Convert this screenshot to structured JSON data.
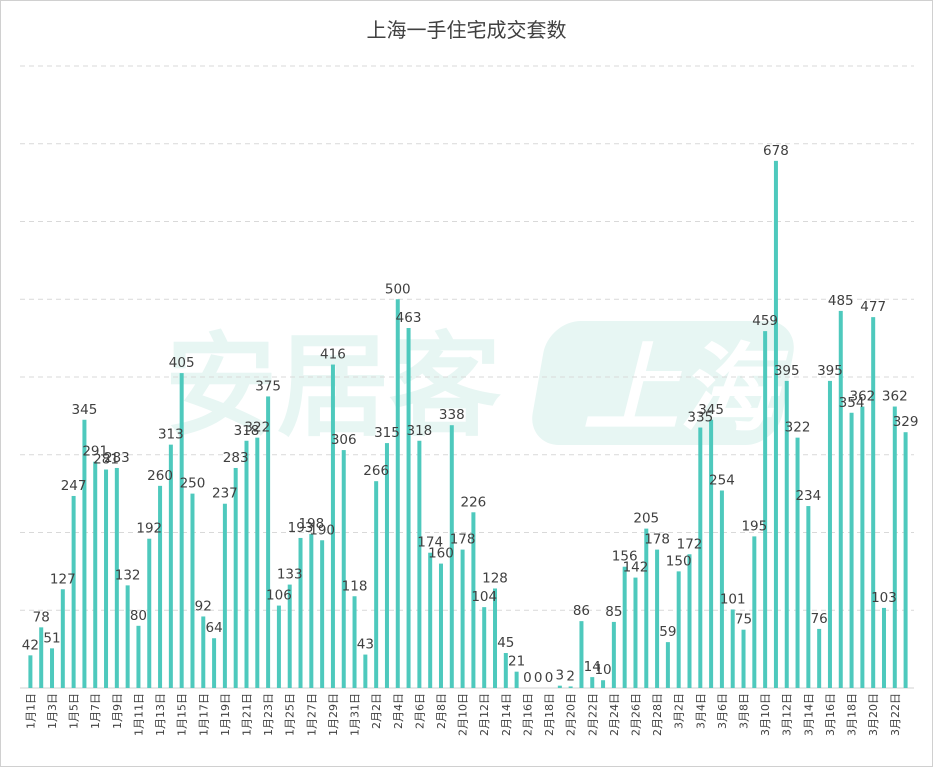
{
  "chart_data": {
    "type": "bar",
    "title": "上海一手住宅成交套数",
    "xlabel": "",
    "ylabel": "",
    "ylim": [
      0,
      800
    ],
    "grid": true,
    "bar_color": "#4ec9bd",
    "categories": [
      "1月1日",
      "1月2日",
      "1月3日",
      "1月4日",
      "1月5日",
      "1月6日",
      "1月7日",
      "1月8日",
      "1月9日",
      "1月10日",
      "1月11日",
      "1月12日",
      "1月13日",
      "1月14日",
      "1月15日",
      "1月16日",
      "1月17日",
      "1月18日",
      "1月19日",
      "1月20日",
      "1月21日",
      "1月22日",
      "1月23日",
      "1月24日",
      "1月25日",
      "1月26日",
      "1月27日",
      "1月28日",
      "1月29日",
      "1月30日",
      "1月31日",
      "2月1日",
      "2月2日",
      "2月3日",
      "2月4日",
      "2月5日",
      "2月6日",
      "2月7日",
      "2月8日",
      "2月9日",
      "2月10日",
      "2月11日",
      "2月12日",
      "2月13日",
      "2月14日",
      "2月15日",
      "2月16日",
      "2月17日",
      "2月18日",
      "2月19日",
      "2月20日",
      "2月21日",
      "2月22日",
      "2月23日",
      "2月24日",
      "2月25日",
      "2月26日",
      "2月27日",
      "2月28日",
      "3月1日",
      "3月2日",
      "3月3日",
      "3月4日",
      "3月5日",
      "3月6日",
      "3月7日",
      "3月8日",
      "3月9日",
      "3月10日",
      "3月11日",
      "3月12日",
      "3月13日",
      "3月14日",
      "3月15日",
      "3月16日",
      "3月17日",
      "3月18日",
      "3月19日",
      "3月20日",
      "3月21日",
      "3月22日",
      "3月23日"
    ],
    "shown_tick_labels": [
      "1月1日",
      "1月3日",
      "1月5日",
      "1月7日",
      "1月9日",
      "1月11日",
      "1月13日",
      "1月15日",
      "1月17日",
      "1月19日",
      "1月21日",
      "1月23日",
      "1月25日",
      "1月27日",
      "1月29日",
      "1月31日",
      "2月2日",
      "2月4日",
      "2月6日",
      "2月8日",
      "2月10日",
      "2月12日",
      "2月14日",
      "2月16日",
      "2月18日",
      "2月20日",
      "2月22日",
      "2月24日",
      "2月26日",
      "2月28日",
      "3月2日",
      "3月4日",
      "3月6日",
      "3月8日",
      "3月10日",
      "3月12日",
      "3月14日",
      "3月16日",
      "3月18日",
      "3月20日",
      "3月22日"
    ],
    "values": [
      42,
      78,
      51,
      127,
      247,
      345,
      291,
      281,
      283,
      132,
      80,
      192,
      260,
      313,
      405,
      250,
      92,
      64,
      237,
      283,
      318,
      322,
      375,
      106,
      133,
      193,
      198,
      190,
      416,
      306,
      118,
      43,
      266,
      315,
      500,
      463,
      318,
      174,
      160,
      338,
      178,
      226,
      104,
      128,
      45,
      21,
      0,
      0,
      0,
      3,
      2,
      86,
      14,
      10,
      85,
      156,
      142,
      205,
      178,
      59,
      150,
      172,
      335,
      345,
      254,
      101,
      75,
      195,
      459,
      678,
      395,
      322,
      234,
      76,
      395,
      485,
      354,
      362,
      477,
      103,
      362,
      329
    ]
  },
  "watermark": {
    "left": "安居客",
    "right": "上海"
  }
}
